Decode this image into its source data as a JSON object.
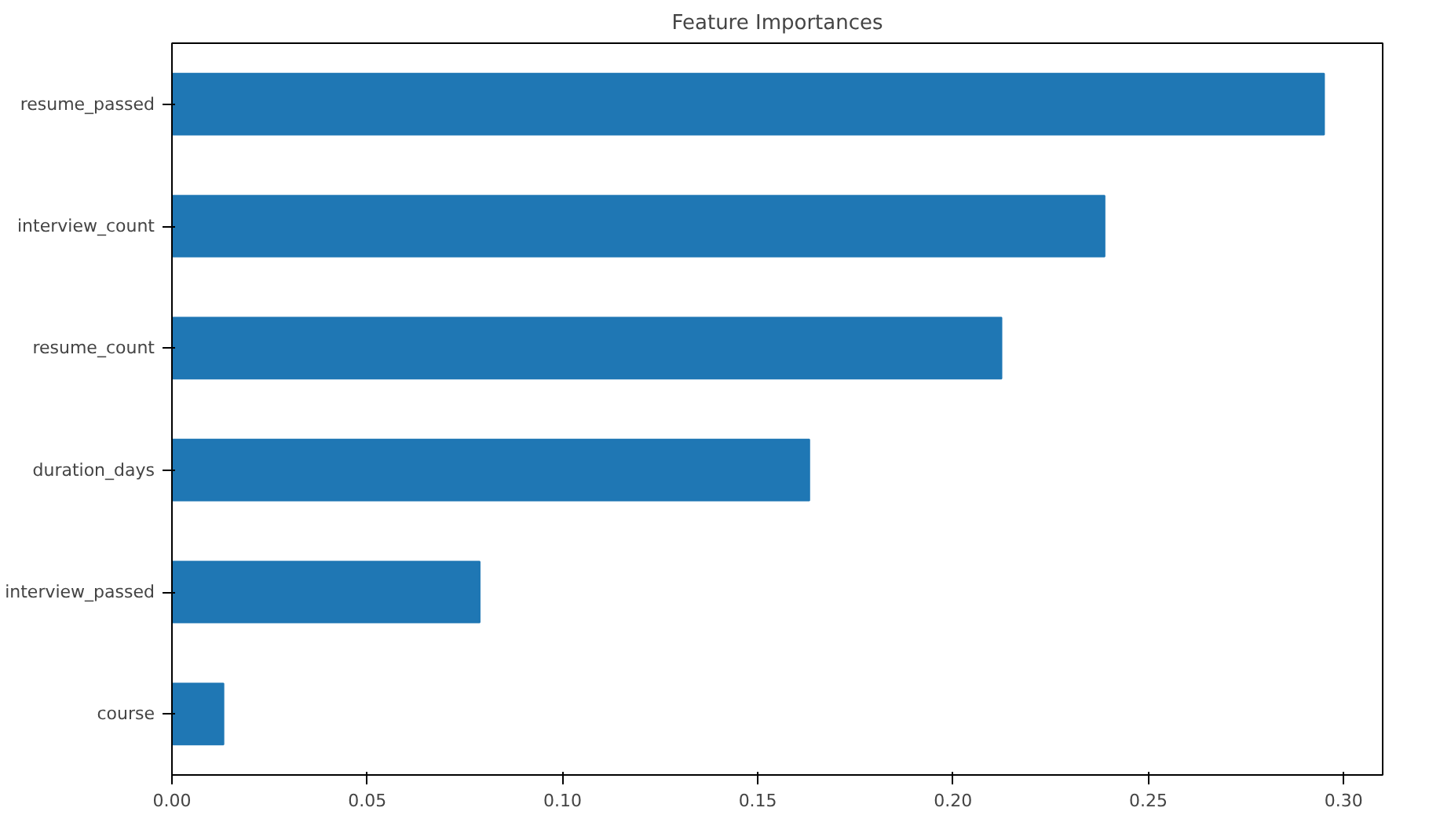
{
  "chart_data": {
    "type": "bar",
    "orientation": "horizontal",
    "title": "Feature Importances",
    "categories": [
      "resume_passed",
      "interview_count",
      "resume_count",
      "duration_days",
      "interview_passed",
      "course"
    ],
    "values": [
      0.295,
      0.2388,
      0.2124,
      0.1632,
      0.0788,
      0.0132
    ],
    "color": "#1f77b4",
    "xlim": [
      0,
      0.31
    ],
    "xticks": [
      {
        "value": 0,
        "label": "0.00"
      },
      {
        "value": 0.05,
        "label": "0.05"
      },
      {
        "value": 0.1,
        "label": "0.10"
      },
      {
        "value": 0.15,
        "label": "0.15"
      },
      {
        "value": 0.2,
        "label": "0.20"
      },
      {
        "value": 0.25,
        "label": "0.25"
      },
      {
        "value": 0.3,
        "label": "0.30"
      }
    ],
    "grid": false
  }
}
